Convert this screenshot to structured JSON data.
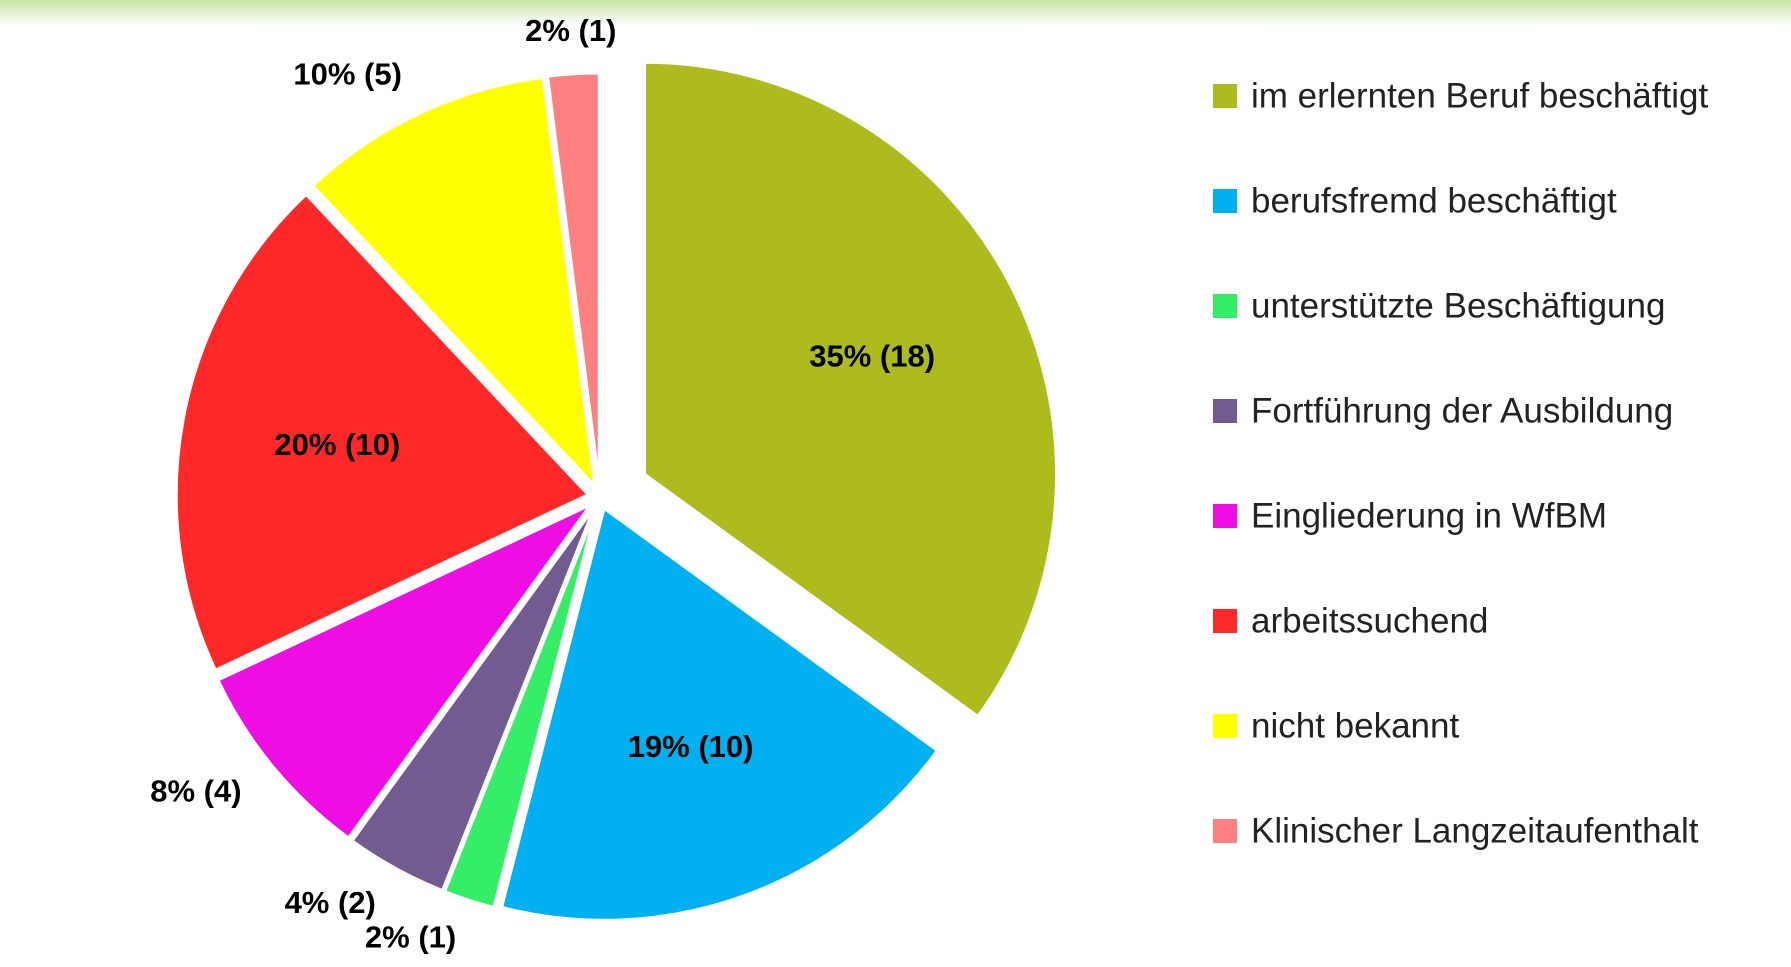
{
  "chart_data": {
    "type": "pie",
    "categories": [
      "im erlernten Beruf beschäftigt",
      "berufsfremd beschäftigt",
      "unterstützte Beschäftigung",
      "Fortführung der Ausbildung",
      "Eingliederung in WfBM",
      "arbeitssuchend",
      "nicht bekannt",
      "Klinischer Langzeitaufenthalt"
    ],
    "values": [
      35,
      19,
      2,
      4,
      8,
      20,
      10,
      2
    ],
    "value_labels": [
      "35% (18)",
      "19% (10)",
      "2% (1)",
      "4% (2)",
      "8% (4)",
      "20% (10)",
      "10% (5)",
      "2% (1)"
    ],
    "colors": [
      "#adbb1d",
      "#00b0f0",
      "#33ee66",
      "#725b90",
      "#ee0de3",
      "#ff2828",
      "#ffff00",
      "#ff8080"
    ],
    "legend": "right"
  }
}
